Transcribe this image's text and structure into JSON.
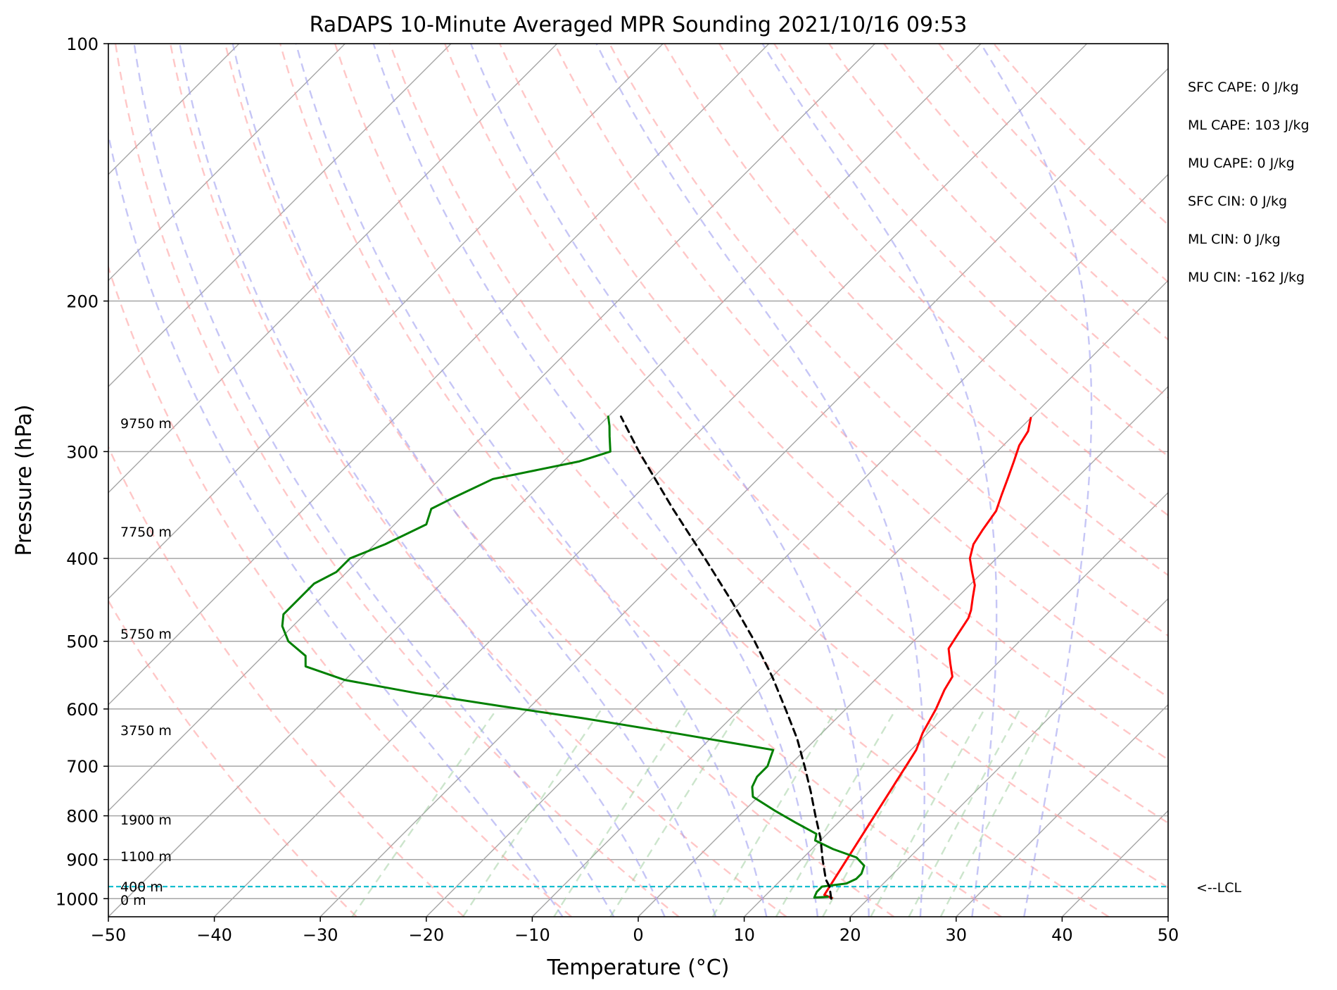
{
  "chart_data": {
    "type": "line",
    "title": "RaDAPS 10-Minute Averaged MPR Sounding 2021/10/16 09:53",
    "xlabel": "Temperature (°C)",
    "ylabel": "Pressure (hPa)",
    "xlim": [
      -50,
      50
    ],
    "ylim": [
      1050,
      100
    ],
    "y_scale": "log",
    "skew": "skew-T log-P",
    "grid": true,
    "x_ticks": [
      "−50",
      "−40",
      "−30",
      "−20",
      "−10",
      "0",
      "10",
      "20",
      "30",
      "40",
      "50"
    ],
    "y_ticks": [
      "100",
      "200",
      "300",
      "400",
      "500",
      "600",
      "700",
      "800",
      "900",
      "1000"
    ],
    "height_labels": [
      {
        "text": "9750 m",
        "pressure": 278
      },
      {
        "text": "7750 m",
        "pressure": 372
      },
      {
        "text": "5750 m",
        "pressure": 490
      },
      {
        "text": "3750 m",
        "pressure": 635
      },
      {
        "text": "1900 m",
        "pressure": 808
      },
      {
        "text": "1100 m",
        "pressure": 892
      },
      {
        "text": "400 m",
        "pressure": 968
      },
      {
        "text": "0 m",
        "pressure": 1003
      }
    ],
    "lcl": {
      "pressure": 968,
      "label": "<--LCL",
      "color": "#17becf"
    },
    "indices": [
      "SFC CAPE: 0 J/kg",
      "ML CAPE: 103 J/kg",
      "MU CAPE: 0 J/kg",
      "SFC CIN: 0 J/kg",
      "ML CIN: 0 J/kg",
      "MU CIN: -162 J/kg"
    ],
    "series": [
      {
        "role": "temperature",
        "color": "#ff0000",
        "points": [
          {
            "p": 998,
            "t": 16.5
          },
          {
            "p": 990,
            "t": 15.5
          },
          {
            "p": 670,
            "t": 10.5
          },
          {
            "p": 640,
            "t": 9.5
          },
          {
            "p": 600,
            "t": 8.5
          },
          {
            "p": 570,
            "t": 7.5
          },
          {
            "p": 550,
            "t": 7.0
          },
          {
            "p": 530,
            "t": 5.5
          },
          {
            "p": 510,
            "t": 4.0
          },
          {
            "p": 490,
            "t": 3.5
          },
          {
            "p": 470,
            "t": 3.0
          },
          {
            "p": 460,
            "t": 2.5
          },
          {
            "p": 445,
            "t": 1.5
          },
          {
            "p": 430,
            "t": 0.5
          },
          {
            "p": 415,
            "t": -1.0
          },
          {
            "p": 400,
            "t": -2.5
          },
          {
            "p": 385,
            "t": -3.5
          },
          {
            "p": 370,
            "t": -4.0
          },
          {
            "p": 352,
            "t": -4.5
          },
          {
            "p": 337,
            "t": -5.5
          },
          {
            "p": 322,
            "t": -6.5
          },
          {
            "p": 308,
            "t": -7.5
          },
          {
            "p": 295,
            "t": -8.5
          },
          {
            "p": 284,
            "t": -9.0
          },
          {
            "p": 274,
            "t": -10.0
          }
        ]
      },
      {
        "role": "dewpoint",
        "color": "#008000",
        "points": [
          {
            "p": 995,
            "t": 16.0
          },
          {
            "p": 997,
            "t": 14.8
          },
          {
            "p": 982,
            "t": 14.5
          },
          {
            "p": 968,
            "t": 14.5
          },
          {
            "p": 960,
            "t": 16.5
          },
          {
            "p": 948,
            "t": 17.0
          },
          {
            "p": 935,
            "t": 17.0
          },
          {
            "p": 915,
            "t": 16.5
          },
          {
            "p": 895,
            "t": 15.0
          },
          {
            "p": 875,
            "t": 12.0
          },
          {
            "p": 855,
            "t": 9.5
          },
          {
            "p": 840,
            "t": 9.0
          },
          {
            "p": 815,
            "t": 6.0
          },
          {
            "p": 790,
            "t": 3.0
          },
          {
            "p": 760,
            "t": -0.5
          },
          {
            "p": 740,
            "t": -1.5
          },
          {
            "p": 720,
            "t": -2.0
          },
          {
            "p": 700,
            "t": -2.0
          },
          {
            "p": 685,
            "t": -2.5
          },
          {
            "p": 670,
            "t": -3.0
          },
          {
            "p": 640,
            "t": -14.0
          },
          {
            "p": 615,
            "t": -24.0
          },
          {
            "p": 595,
            "t": -33.0
          },
          {
            "p": 575,
            "t": -42.0
          },
          {
            "p": 555,
            "t": -50.0
          },
          {
            "p": 535,
            "t": -55.0
          },
          {
            "p": 520,
            "t": -56.0
          },
          {
            "p": 500,
            "t": -59.0
          },
          {
            "p": 480,
            "t": -61.0
          },
          {
            "p": 465,
            "t": -62.0
          },
          {
            "p": 448,
            "t": -62.0
          },
          {
            "p": 428,
            "t": -62.0
          },
          {
            "p": 415,
            "t": -61.0
          },
          {
            "p": 400,
            "t": -61.0
          },
          {
            "p": 385,
            "t": -59.0
          },
          {
            "p": 365,
            "t": -57.0
          },
          {
            "p": 350,
            "t": -58.0
          },
          {
            "p": 340,
            "t": -57.0
          },
          {
            "p": 323,
            "t": -55.0
          },
          {
            "p": 308,
            "t": -48.5
          },
          {
            "p": 300,
            "t": -46.5
          },
          {
            "p": 288,
            "t": -48.0
          },
          {
            "p": 280,
            "t": -49.0
          },
          {
            "p": 273,
            "t": -50.0
          }
        ]
      },
      {
        "role": "parcel",
        "color": "#000000",
        "style": "dashed",
        "points": [
          {
            "p": 1000,
            "t": 16.5
          },
          {
            "p": 968,
            "t": 15.2
          },
          {
            "p": 950,
            "t": 14.2
          },
          {
            "p": 900,
            "t": 12.0
          },
          {
            "p": 850,
            "t": 9.8
          },
          {
            "p": 800,
            "t": 7.2
          },
          {
            "p": 750,
            "t": 4.5
          },
          {
            "p": 700,
            "t": 1.5
          },
          {
            "p": 650,
            "t": -1.8
          },
          {
            "p": 600,
            "t": -5.7
          },
          {
            "p": 550,
            "t": -10.0
          },
          {
            "p": 500,
            "t": -15.0
          },
          {
            "p": 450,
            "t": -20.8
          },
          {
            "p": 400,
            "t": -27.5
          },
          {
            "p": 350,
            "t": -35.2
          },
          {
            "p": 300,
            "t": -43.8
          },
          {
            "p": 273,
            "t": -48.8
          }
        ]
      }
    ],
    "background_lines": {
      "isotherms_c": [
        -120,
        -110,
        -100,
        -90,
        -80,
        -70,
        -60,
        -50,
        -40,
        -30,
        -20,
        -10,
        0,
        10,
        20,
        30,
        40,
        50
      ],
      "dry_adiabats_c": [
        -30,
        -20,
        -10,
        0,
        10,
        20,
        30,
        40,
        50,
        60,
        70,
        80,
        90,
        100,
        110,
        120,
        130,
        140,
        150,
        160
      ],
      "moist_adiabats_c": [
        -10,
        -5,
        0,
        5,
        10,
        15,
        20,
        25,
        30,
        35
      ],
      "mixing_ratios_gkg": [
        0.4,
        1,
        2,
        3,
        6,
        9,
        12,
        16,
        20,
        24
      ],
      "colors": {
        "isotherm": "#a6a6a6",
        "dry_adiabat": "#ff9999",
        "moist_adiabat": "#a0a0f0",
        "mixing_ratio": "#99cc99"
      }
    }
  }
}
